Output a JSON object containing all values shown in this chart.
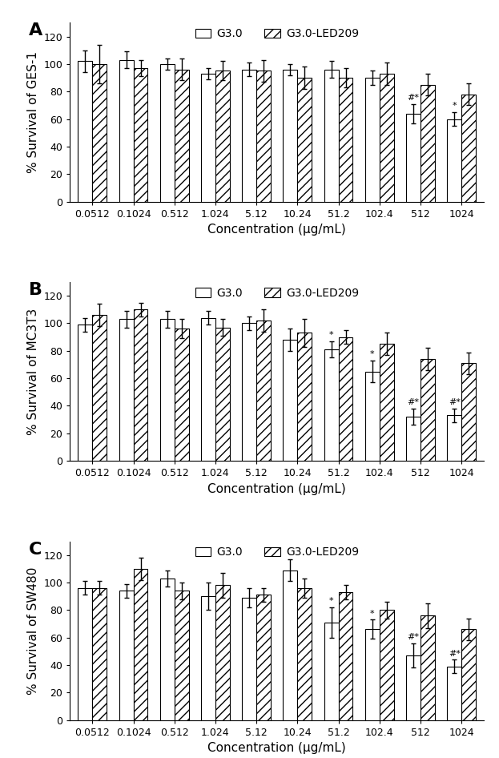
{
  "concentrations": [
    "0.0512",
    "0.1024",
    "0.512",
    "1.024",
    "5.12",
    "10.24",
    "51.2",
    "102.4",
    "512",
    "1024"
  ],
  "panels": [
    {
      "label": "A",
      "ylabel": "% Survival of GES-1",
      "g30_vals": [
        102,
        103,
        100,
        93,
        96,
        96,
        96,
        90,
        64,
        60
      ],
      "g30_err": [
        8,
        6,
        4,
        4,
        5,
        4,
        6,
        5,
        7,
        5
      ],
      "led_vals": [
        100,
        97,
        96,
        95,
        95,
        90,
        90,
        93,
        85,
        78
      ],
      "led_err": [
        14,
        6,
        8,
        7,
        8,
        8,
        7,
        8,
        8,
        8
      ],
      "g30_annots": [
        "",
        "",
        "",
        "",
        "",
        "",
        "",
        "",
        "#*",
        "*"
      ],
      "led_annots": [
        "",
        "",
        "",
        "",
        "",
        "",
        "",
        "",
        "",
        ""
      ]
    },
    {
      "label": "B",
      "ylabel": "% Survival of MC3T3",
      "g30_vals": [
        99,
        103,
        103,
        104,
        100,
        88,
        81,
        65,
        32,
        33
      ],
      "g30_err": [
        5,
        6,
        6,
        5,
        5,
        8,
        6,
        8,
        6,
        5
      ],
      "led_vals": [
        106,
        110,
        96,
        97,
        102,
        93,
        90,
        85,
        74,
        71
      ],
      "led_err": [
        8,
        5,
        7,
        6,
        8,
        10,
        5,
        8,
        8,
        8
      ],
      "g30_annots": [
        "",
        "",
        "",
        "",
        "",
        "",
        "*",
        "*",
        "#*",
        "#*"
      ],
      "led_annots": [
        "",
        "",
        "",
        "",
        "",
        "",
        "",
        "",
        "",
        ""
      ]
    },
    {
      "label": "C",
      "ylabel": "% Survival of SW480",
      "g30_vals": [
        96,
        94,
        103,
        90,
        89,
        109,
        71,
        66,
        47,
        39
      ],
      "g30_err": [
        5,
        5,
        6,
        10,
        7,
        8,
        11,
        7,
        9,
        5
      ],
      "led_vals": [
        96,
        110,
        94,
        98,
        91,
        96,
        93,
        80,
        76,
        66
      ],
      "led_err": [
        5,
        8,
        6,
        9,
        5,
        7,
        5,
        6,
        9,
        8
      ],
      "g30_annots": [
        "",
        "",
        "",
        "",
        "",
        "",
        "*",
        "*",
        "#*",
        "#*"
      ],
      "led_annots": [
        "",
        "",
        "",
        "",
        "",
        "",
        "",
        "",
        "",
        ""
      ]
    }
  ],
  "bar_width": 0.35,
  "ylim": [
    0,
    130
  ],
  "yticks": [
    0,
    20,
    40,
    60,
    80,
    100,
    120
  ],
  "legend_labels": [
    "G3.0",
    "G3.0-LED209"
  ],
  "xlabel": "Concentration (μg/mL)",
  "g30_color": "white",
  "hatch_pattern": "///",
  "edge_color": "black",
  "annotation_fontsize": 8,
  "ylabel_fontsize": 11,
  "xlabel_fontsize": 11,
  "tick_fontsize": 9,
  "legend_fontsize": 10,
  "panel_label_fontsize": 16
}
